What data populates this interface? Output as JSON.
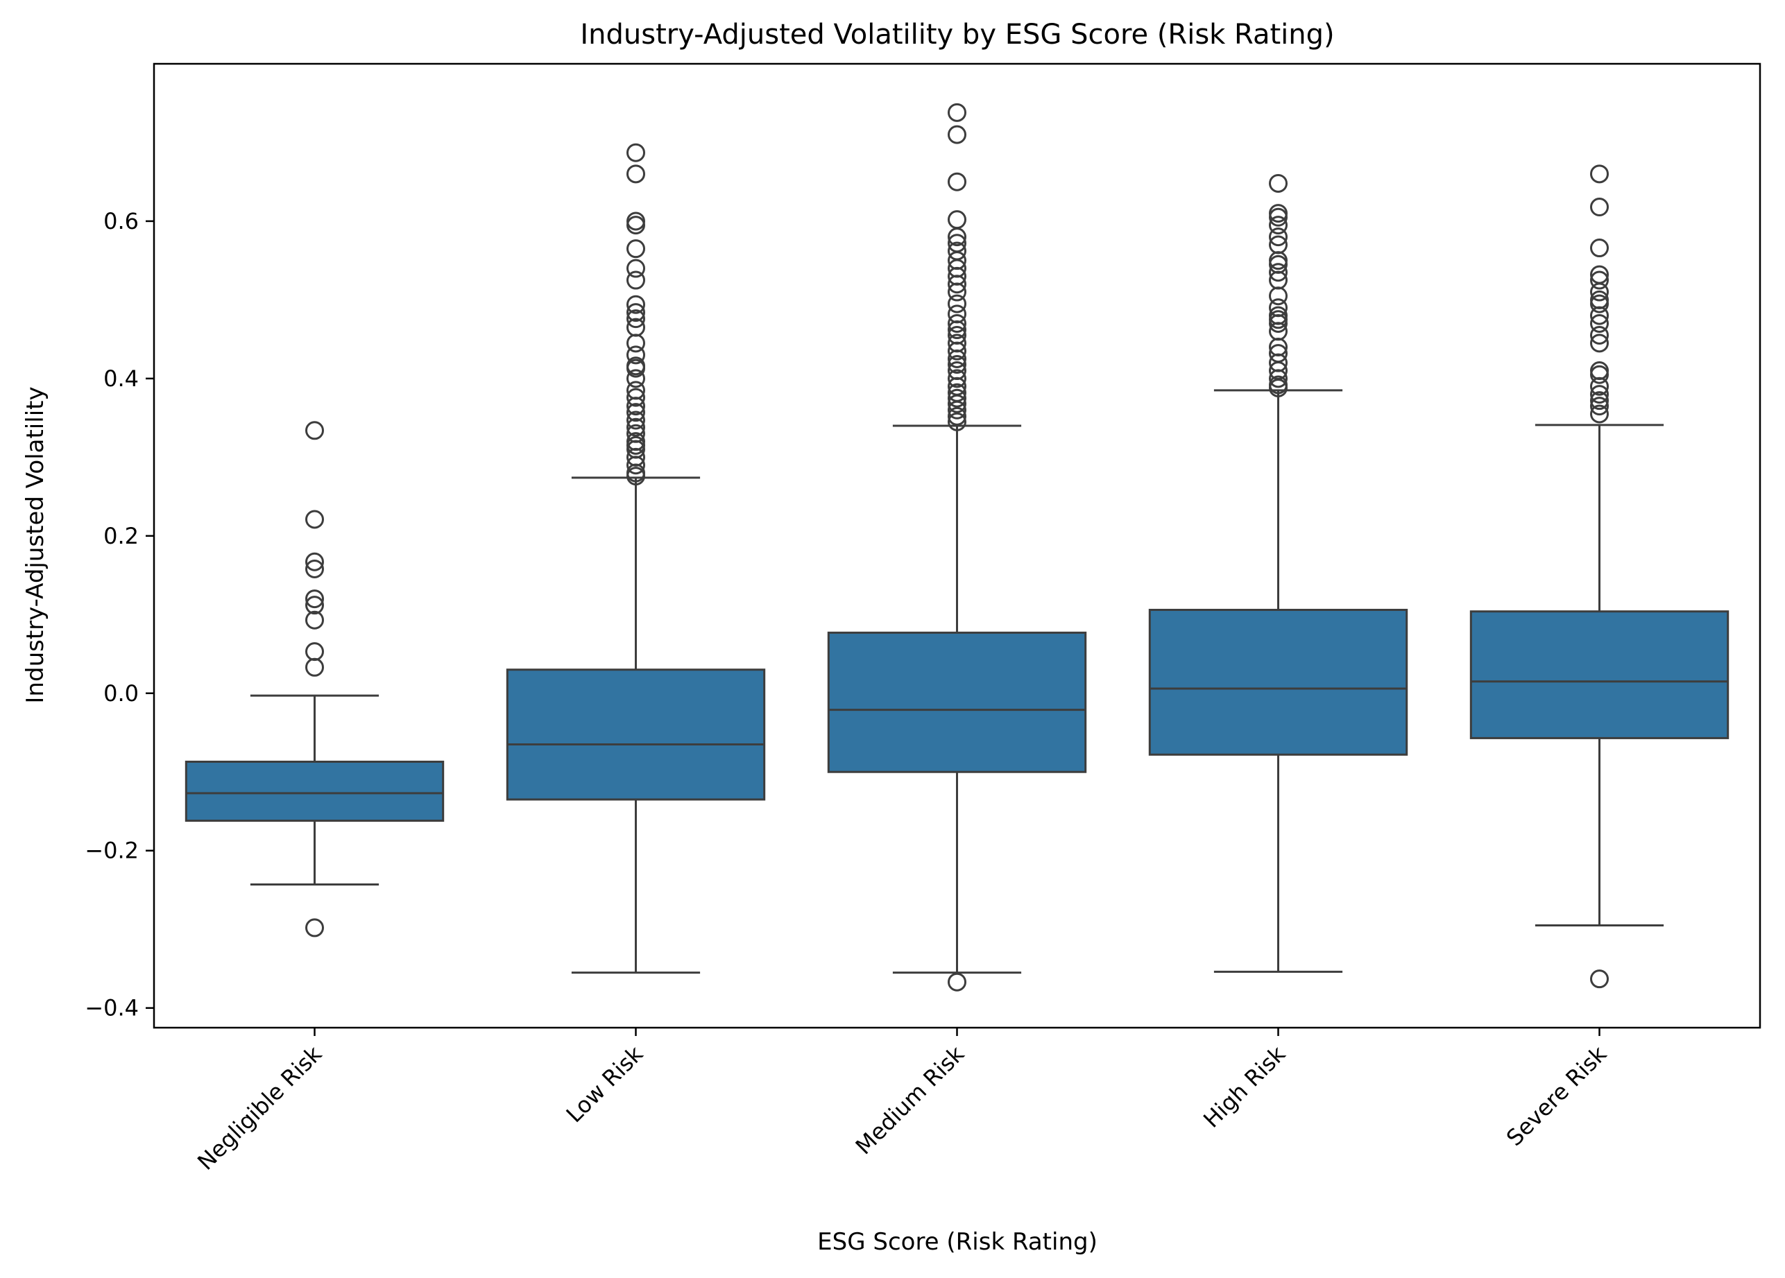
{
  "chart_data": {
    "type": "box",
    "title": "Industry-Adjusted Volatility by ESG Score (Risk Rating)",
    "xlabel": "ESG Score (Risk Rating)",
    "ylabel": "Industry-Adjusted Volatility",
    "ylim": [
      -0.425,
      0.8
    ],
    "yticks": [
      -0.4,
      -0.2,
      0.0,
      0.2,
      0.4,
      0.6
    ],
    "ytick_labels": [
      "−0.4",
      "−0.2",
      "0.0",
      "0.2",
      "0.4",
      "0.6"
    ],
    "grid": false,
    "box_color": "#3274a1",
    "line_color": "#3d3d3d",
    "categories": [
      "Negligible Risk",
      "Low Risk",
      "Medium Risk",
      "High Risk",
      "Severe Risk"
    ],
    "boxes": [
      {
        "category": "Negligible Risk",
        "whisker_low": -0.243,
        "q1": -0.162,
        "median": -0.127,
        "q3": -0.087,
        "whisker_high": -0.003,
        "outliers": [
          0.334,
          0.221,
          0.167,
          0.158,
          0.12,
          0.112,
          0.093,
          0.053,
          0.033,
          -0.298
        ]
      },
      {
        "category": "Low Risk",
        "whisker_low": -0.355,
        "q1": -0.135,
        "median": -0.065,
        "q3": 0.03,
        "whisker_high": 0.274,
        "outliers": [
          0.687,
          0.66,
          0.6,
          0.595,
          0.565,
          0.54,
          0.525,
          0.494,
          0.484,
          0.476,
          0.465,
          0.445,
          0.43,
          0.416,
          0.413,
          0.4,
          0.385,
          0.376,
          0.365,
          0.357,
          0.347,
          0.338,
          0.33,
          0.32,
          0.315,
          0.31,
          0.3,
          0.29,
          0.28,
          0.276
        ]
      },
      {
        "category": "Medium Risk",
        "whisker_low": -0.355,
        "q1": -0.1,
        "median": -0.021,
        "q3": 0.077,
        "whisker_high": 0.34,
        "outliers": [
          0.738,
          0.71,
          0.65,
          0.602,
          0.58,
          0.572,
          0.562,
          0.55,
          0.54,
          0.53,
          0.52,
          0.51,
          0.495,
          0.482,
          0.47,
          0.462,
          0.455,
          0.445,
          0.435,
          0.425,
          0.418,
          0.41,
          0.4,
          0.39,
          0.382,
          0.375,
          0.368,
          0.36,
          0.352,
          0.345,
          -0.367
        ]
      },
      {
        "category": "High Risk",
        "whisker_low": -0.354,
        "q1": -0.078,
        "median": 0.006,
        "q3": 0.106,
        "whisker_high": 0.385,
        "outliers": [
          0.648,
          0.61,
          0.605,
          0.595,
          0.58,
          0.57,
          0.55,
          0.545,
          0.535,
          0.525,
          0.505,
          0.49,
          0.48,
          0.475,
          0.47,
          0.46,
          0.44,
          0.432,
          0.42,
          0.41,
          0.4,
          0.392,
          0.388
        ]
      },
      {
        "category": "Severe Risk",
        "whisker_low": -0.295,
        "q1": -0.057,
        "median": 0.015,
        "q3": 0.104,
        "whisker_high": 0.341,
        "outliers": [
          0.66,
          0.618,
          0.566,
          0.532,
          0.525,
          0.51,
          0.5,
          0.495,
          0.48,
          0.47,
          0.455,
          0.445,
          0.41,
          0.405,
          0.39,
          0.38,
          0.372,
          0.365,
          0.355,
          -0.363
        ]
      }
    ]
  }
}
